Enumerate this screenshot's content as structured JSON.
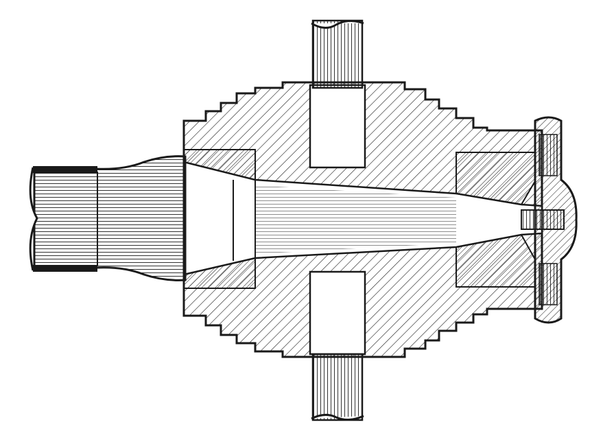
{
  "figure": {
    "colors": {
      "paper": "#ffffff",
      "ink": "#1a1a1a",
      "hatch": "#2b2b2b"
    }
  }
}
